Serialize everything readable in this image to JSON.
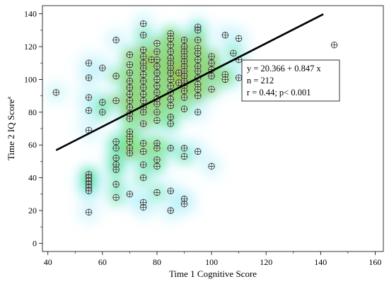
{
  "chart_data": {
    "type": "scatter",
    "title": "",
    "xlabel": "Time 1 Cognitive Score",
    "ylabel": "Time 2 IQ Score",
    "ylabel_superscript": "a",
    "xlim": [
      38,
      163
    ],
    "ylim": [
      -5,
      145
    ],
    "x_ticks": [
      40,
      60,
      80,
      100,
      120,
      140,
      160
    ],
    "y_ticks": [
      0,
      20,
      40,
      60,
      80,
      100,
      120,
      140
    ],
    "grid": false,
    "density_overlay": true,
    "colors": {
      "line": "#000000",
      "axis": "#000000"
    },
    "regression": {
      "x_start": 43,
      "x_end": 141,
      "equation": "y = 20.366 + 0.847 x",
      "n": "n = 212",
      "stats": "r = 0.44; p< 0.001"
    },
    "points": [
      [
        43,
        92
      ],
      [
        55,
        110
      ],
      [
        55,
        101
      ],
      [
        55,
        89
      ],
      [
        55,
        81
      ],
      [
        55,
        69
      ],
      [
        55,
        42
      ],
      [
        55,
        40
      ],
      [
        55,
        38
      ],
      [
        55,
        36
      ],
      [
        55,
        34
      ],
      [
        55,
        32
      ],
      [
        55,
        19
      ],
      [
        60,
        107
      ],
      [
        60,
        86
      ],
      [
        60,
        80
      ],
      [
        65,
        124
      ],
      [
        65,
        102
      ],
      [
        65,
        87
      ],
      [
        65,
        62
      ],
      [
        65,
        58
      ],
      [
        65,
        52
      ],
      [
        65,
        48
      ],
      [
        65,
        45
      ],
      [
        65,
        36
      ],
      [
        65,
        28
      ],
      [
        70,
        115
      ],
      [
        70,
        109
      ],
      [
        70,
        104
      ],
      [
        70,
        99
      ],
      [
        70,
        95
      ],
      [
        70,
        91
      ],
      [
        70,
        87
      ],
      [
        70,
        83
      ],
      [
        70,
        79
      ],
      [
        70,
        76
      ],
      [
        70,
        68
      ],
      [
        70,
        65
      ],
      [
        70,
        62
      ],
      [
        70,
        58
      ],
      [
        70,
        55
      ],
      [
        70,
        30
      ],
      [
        75,
        134
      ],
      [
        75,
        127
      ],
      [
        75,
        118
      ],
      [
        75,
        114
      ],
      [
        75,
        110
      ],
      [
        75,
        107
      ],
      [
        75,
        103
      ],
      [
        75,
        99
      ],
      [
        75,
        95
      ],
      [
        75,
        91
      ],
      [
        75,
        87
      ],
      [
        75,
        83
      ],
      [
        75,
        80
      ],
      [
        75,
        73
      ],
      [
        75,
        61
      ],
      [
        75,
        56
      ],
      [
        75,
        48
      ],
      [
        75,
        40
      ],
      [
        75,
        25
      ],
      [
        75,
        22
      ],
      [
        78,
        112
      ],
      [
        80,
        122
      ],
      [
        80,
        117
      ],
      [
        80,
        112
      ],
      [
        80,
        108
      ],
      [
        80,
        104
      ],
      [
        80,
        100
      ],
      [
        80,
        96
      ],
      [
        80,
        92
      ],
      [
        80,
        88
      ],
      [
        80,
        85
      ],
      [
        80,
        80
      ],
      [
        80,
        75
      ],
      [
        80,
        61
      ],
      [
        80,
        58
      ],
      [
        80,
        51
      ],
      [
        80,
        47
      ],
      [
        80,
        31
      ],
      [
        85,
        128
      ],
      [
        85,
        125
      ],
      [
        85,
        121
      ],
      [
        85,
        117
      ],
      [
        85,
        113
      ],
      [
        85,
        110
      ],
      [
        85,
        107
      ],
      [
        85,
        104
      ],
      [
        85,
        100
      ],
      [
        85,
        96
      ],
      [
        85,
        92
      ],
      [
        85,
        88
      ],
      [
        85,
        84
      ],
      [
        85,
        77
      ],
      [
        85,
        73
      ],
      [
        85,
        58
      ],
      [
        85,
        32
      ],
      [
        85,
        20
      ],
      [
        88,
        104
      ],
      [
        88,
        98
      ],
      [
        90,
        124
      ],
      [
        90,
        120
      ],
      [
        90,
        117
      ],
      [
        90,
        114
      ],
      [
        90,
        111
      ],
      [
        90,
        108
      ],
      [
        90,
        105
      ],
      [
        90,
        102
      ],
      [
        90,
        99
      ],
      [
        90,
        96
      ],
      [
        90,
        93
      ],
      [
        90,
        89
      ],
      [
        90,
        82
      ],
      [
        90,
        58
      ],
      [
        90,
        53
      ],
      [
        90,
        27
      ],
      [
        90,
        24
      ],
      [
        95,
        132
      ],
      [
        95,
        130
      ],
      [
        95,
        124
      ],
      [
        95,
        119
      ],
      [
        95,
        116
      ],
      [
        95,
        112
      ],
      [
        95,
        108
      ],
      [
        95,
        105
      ],
      [
        95,
        101
      ],
      [
        95,
        97
      ],
      [
        95,
        94
      ],
      [
        95,
        90
      ],
      [
        95,
        80
      ],
      [
        95,
        56
      ],
      [
        100,
        114
      ],
      [
        100,
        110
      ],
      [
        100,
        106
      ],
      [
        100,
        102
      ],
      [
        100,
        94
      ],
      [
        100,
        47
      ],
      [
        105,
        127
      ],
      [
        105,
        103
      ],
      [
        105,
        100
      ],
      [
        108,
        116
      ],
      [
        110,
        125
      ],
      [
        110,
        112
      ],
      [
        110,
        101
      ],
      [
        145,
        121
      ]
    ]
  }
}
